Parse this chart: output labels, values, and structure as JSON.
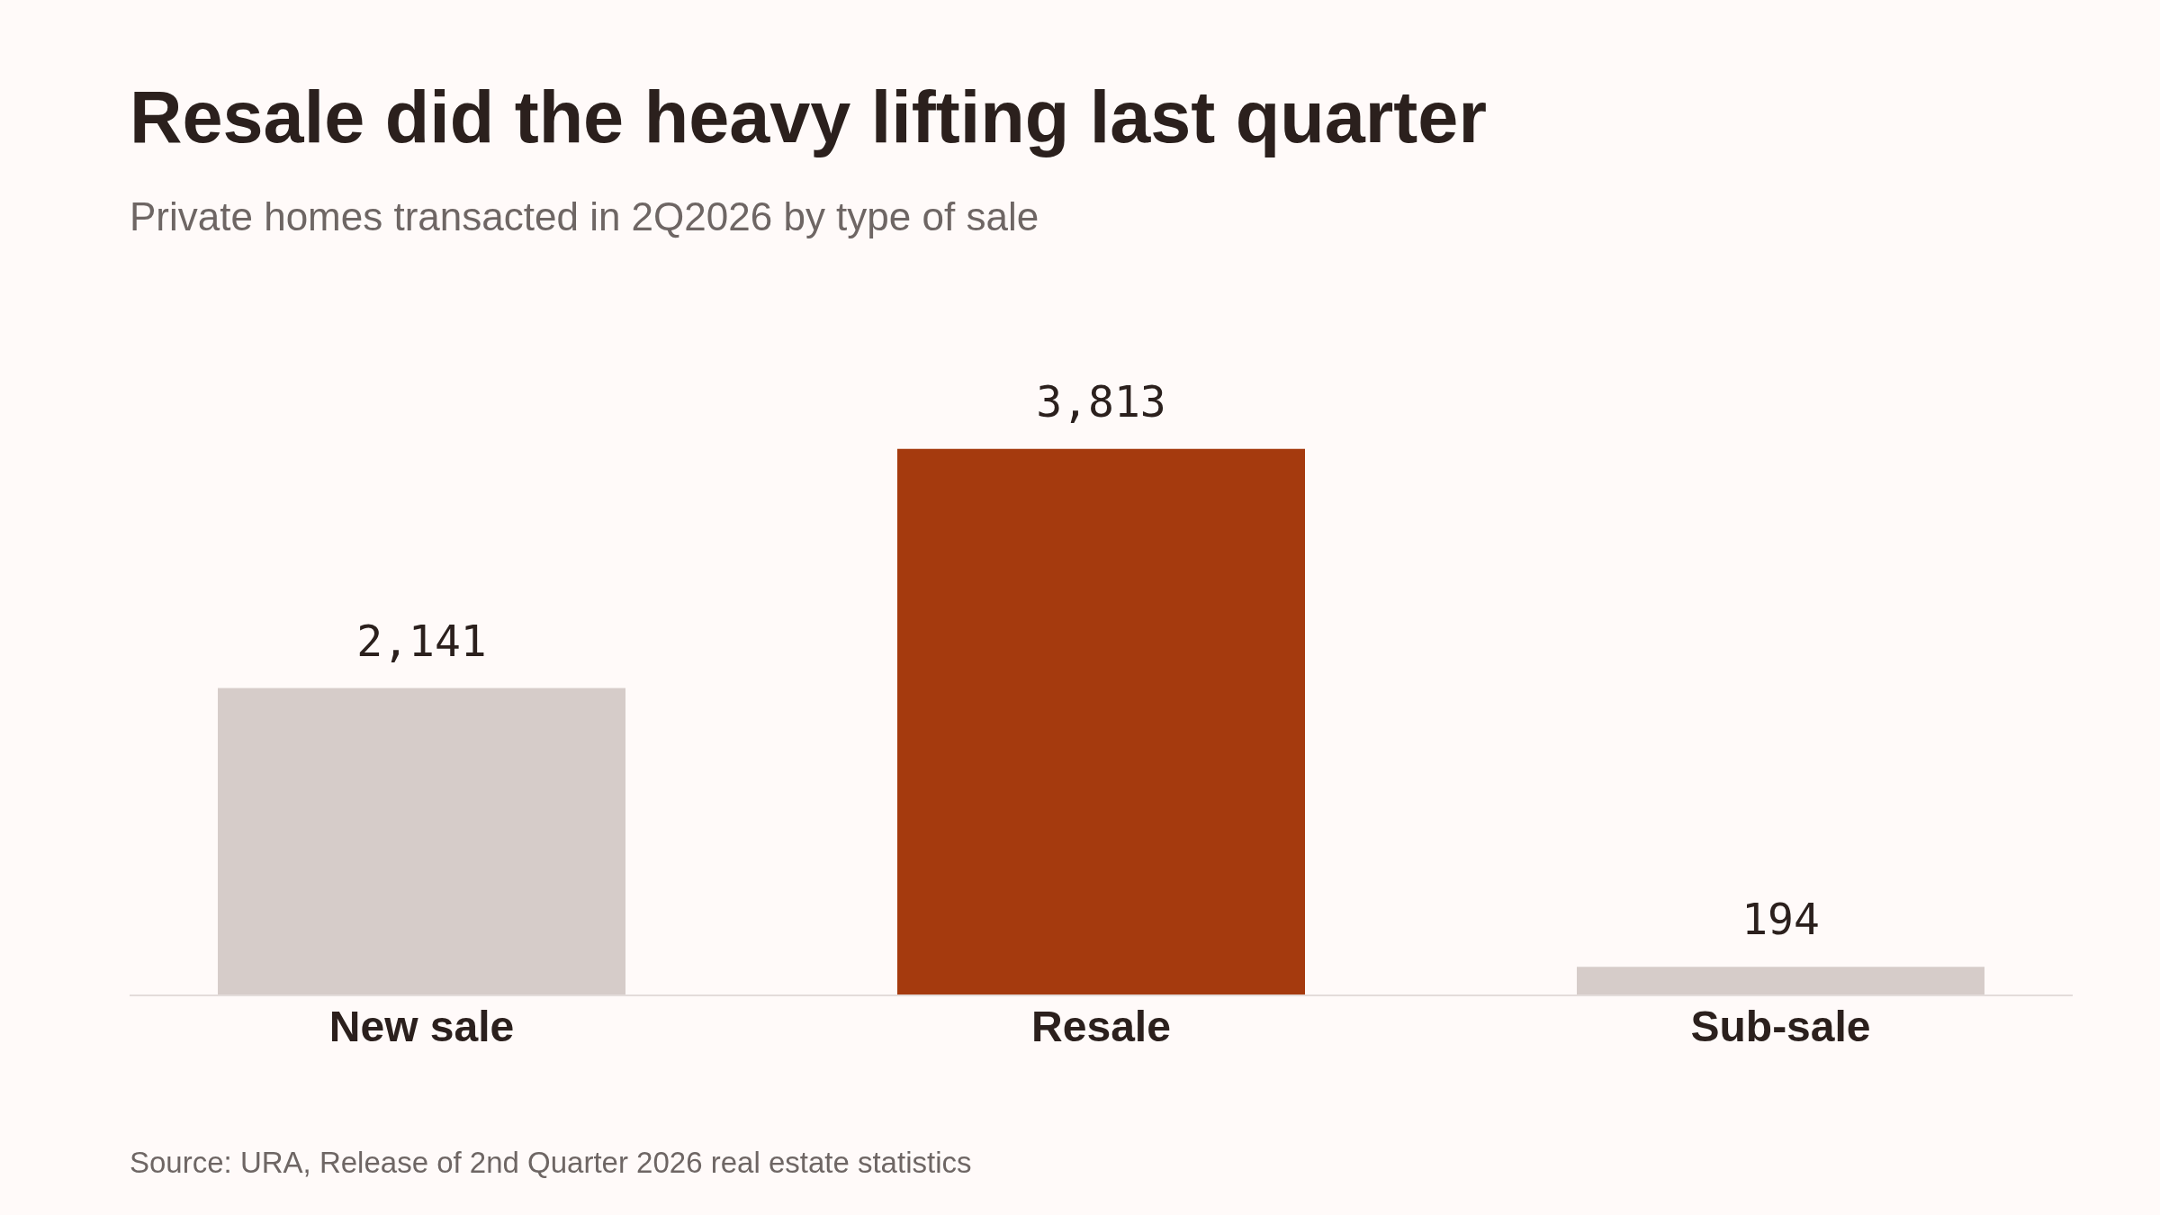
{
  "chart_data": {
    "type": "bar",
    "title": "Resale did the heavy lifting last quarter",
    "subtitle": "Private homes transacted in 2Q2026 by type of sale",
    "categories": [
      "New sale",
      "Resale",
      "Sub-sale"
    ],
    "values": [
      2141,
      3813,
      194
    ],
    "colors": [
      "#d6ccc9",
      "#a53a0e",
      "#d6ccc9"
    ],
    "value_labels": [
      "2,141",
      "3,813",
      "194"
    ],
    "tick_labels": "x",
    "annotations": [
      "Source: URA, Release of 2nd Quarter 2026 real estate statistics"
    ]
  }
}
